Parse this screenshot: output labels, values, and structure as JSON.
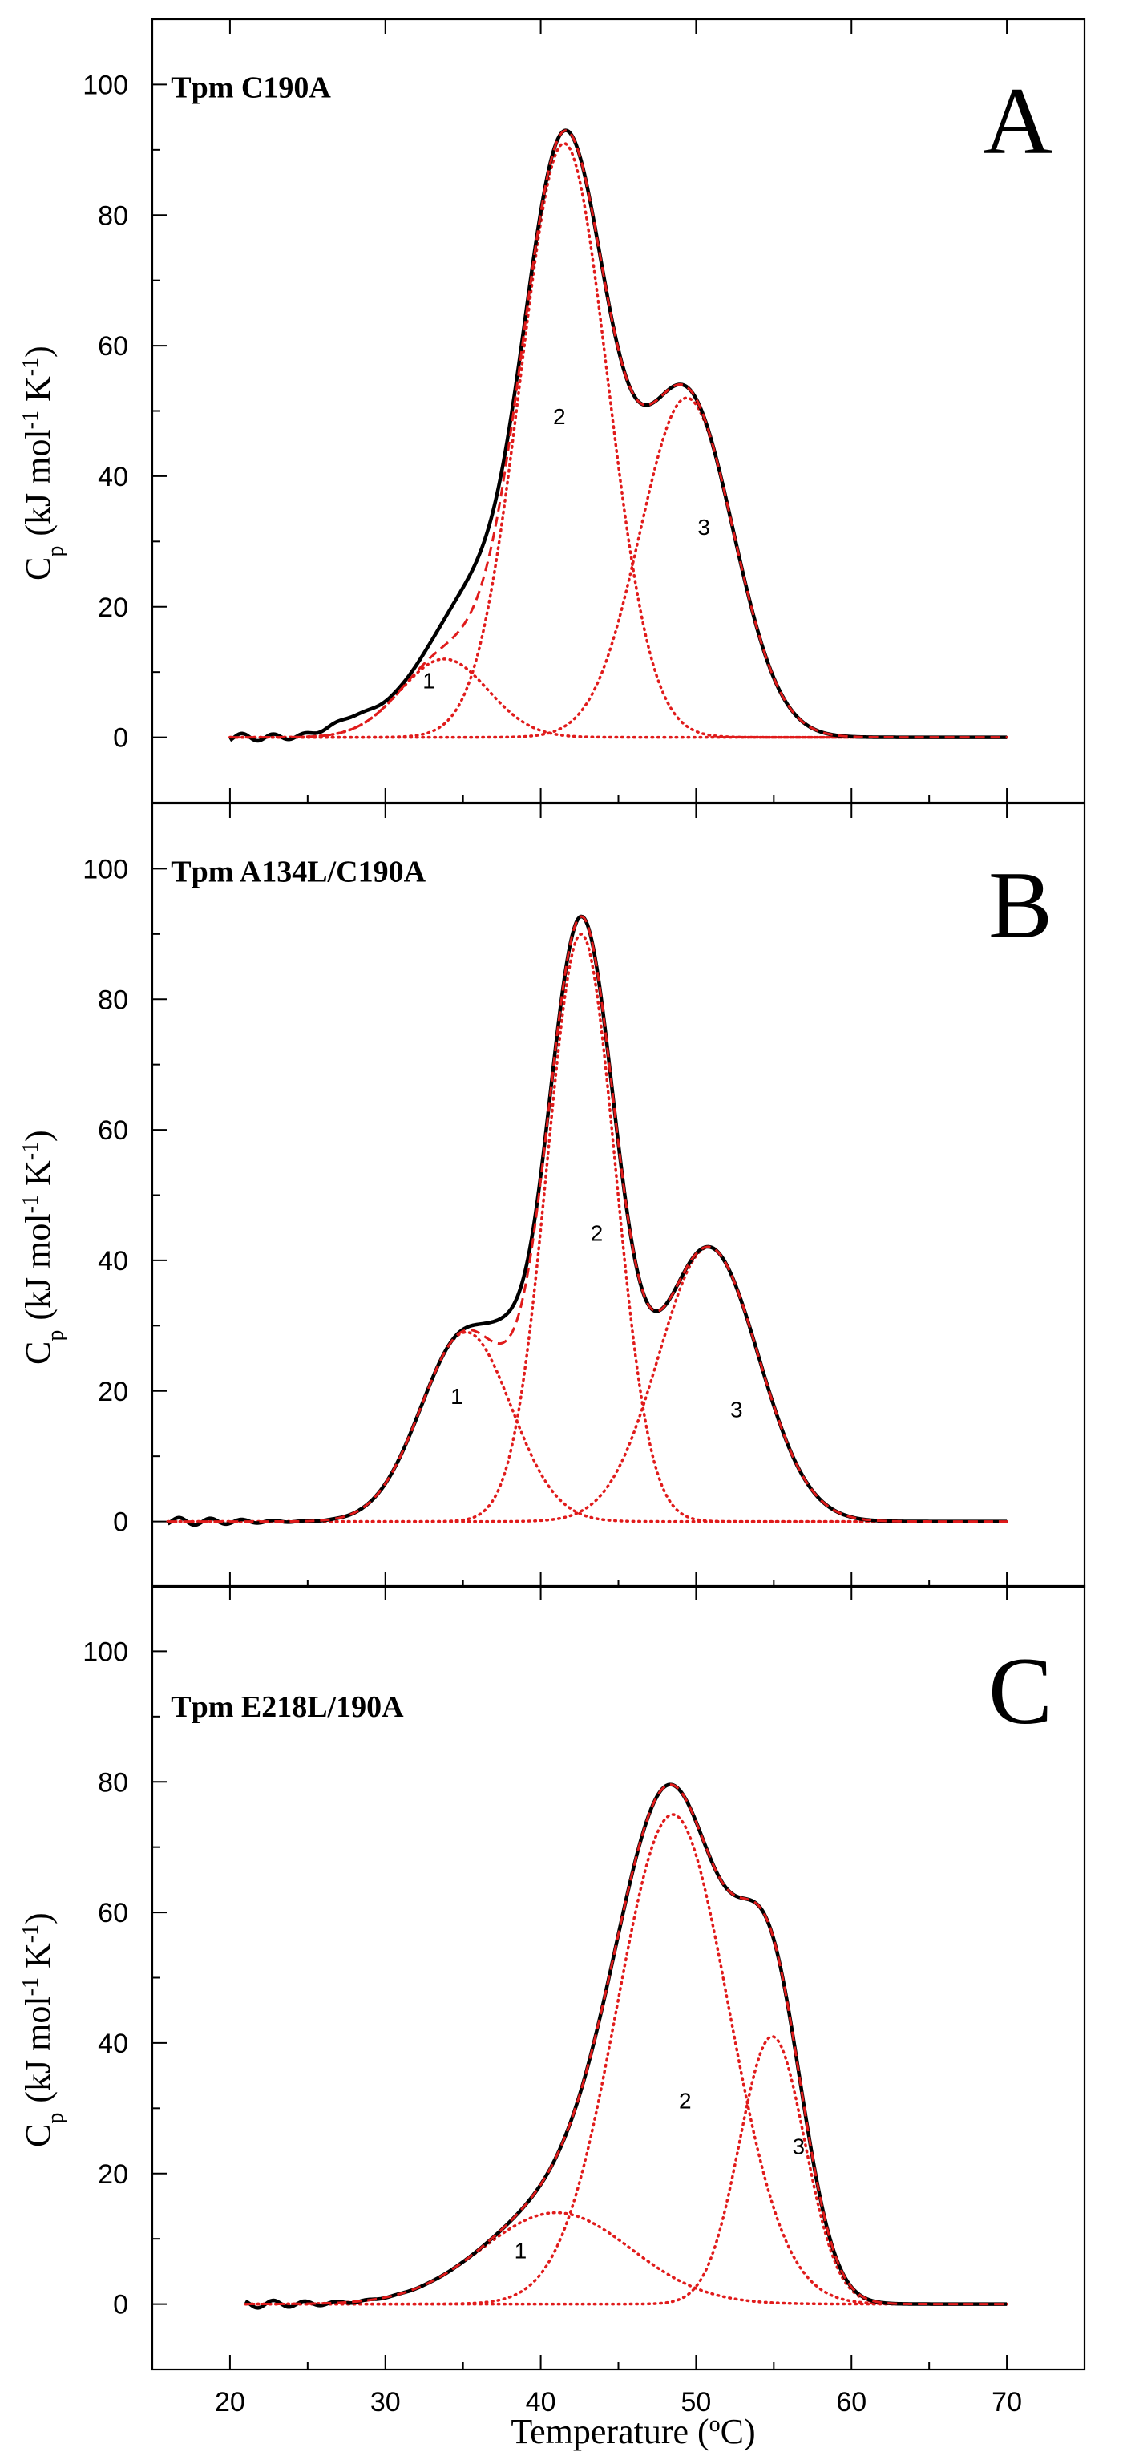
{
  "chart_data": [
    {
      "type": "line",
      "panel": "A",
      "title": "Tpm C190A",
      "xlabel": "Temperature (°C)",
      "ylabel": "Cp (kJ mol-1 K-1)",
      "xlim": [
        15,
        75
      ],
      "ylim": [
        -10,
        110
      ],
      "xticks": [
        20,
        30,
        40,
        50,
        60,
        70
      ],
      "yticks": [
        0,
        20,
        40,
        60,
        80,
        100
      ],
      "peaks": [
        {
          "label": "1",
          "center": 33.8,
          "height": 12,
          "width": 2.8,
          "label_pos": [
            32.8,
            7.5
          ]
        },
        {
          "label": "2",
          "center": 41.5,
          "height": 91,
          "width": 2.8,
          "label_pos": [
            41.2,
            48
          ]
        },
        {
          "label": "3",
          "center": 49.4,
          "height": 52,
          "width": 3.0,
          "label_pos": [
            50.5,
            31
          ]
        }
      ],
      "series": [
        {
          "name": "measured",
          "style": "solid-black",
          "x_range": [
            20,
            70
          ]
        },
        {
          "name": "total fit",
          "style": "dashed-red",
          "x_range": [
            20,
            70
          ]
        },
        {
          "name": "component 1",
          "style": "dotted-red",
          "x_range": [
            20,
            70
          ]
        },
        {
          "name": "component 2",
          "style": "dotted-red",
          "x_range": [
            20,
            70
          ]
        },
        {
          "name": "component 3",
          "style": "dotted-red",
          "x_range": [
            20,
            70
          ]
        }
      ],
      "bumps": [
        {
          "center": 35.4,
          "height": 6,
          "width": 1.8
        },
        {
          "center": 27.8,
          "height": 2,
          "width": 1.5
        }
      ]
    },
    {
      "type": "line",
      "panel": "B",
      "title": "Tpm A134L/C190A",
      "xlabel": "Temperature (°C)",
      "ylabel": "Cp (kJ mol-1 K-1)",
      "xlim": [
        15,
        75
      ],
      "ylim": [
        -10,
        110
      ],
      "xticks": [
        20,
        30,
        40,
        50,
        60,
        70
      ],
      "yticks": [
        0,
        20,
        40,
        60,
        80,
        100
      ],
      "peaks": [
        {
          "label": "1",
          "center": 35.2,
          "height": 29,
          "width": 2.9,
          "label_pos": [
            34.6,
            18
          ]
        },
        {
          "label": "2",
          "center": 42.6,
          "height": 90,
          "width": 2.2,
          "label_pos": [
            43.6,
            43
          ]
        },
        {
          "label": "3",
          "center": 50.8,
          "height": 42,
          "width": 3.2,
          "label_pos": [
            52.6,
            16
          ]
        }
      ],
      "series": [
        {
          "name": "measured",
          "style": "solid-black",
          "x_range": [
            16,
            70
          ]
        },
        {
          "name": "total fit",
          "style": "dashed-red",
          "x_range": [
            16,
            70
          ]
        },
        {
          "name": "component 1",
          "style": "dotted-red",
          "x_range": [
            16,
            70
          ]
        },
        {
          "name": "component 2",
          "style": "dotted-red",
          "x_range": [
            16,
            70
          ]
        },
        {
          "name": "component 3",
          "style": "dotted-red",
          "x_range": [
            16,
            70
          ]
        }
      ],
      "bumps": [
        {
          "center": 37.8,
          "height": 4,
          "width": 1.2
        }
      ]
    },
    {
      "type": "line",
      "panel": "C",
      "title": "Tpm  E218L/190A",
      "xlabel": "Temperature (°C)",
      "ylabel": "Cp (kJ mol-1 K-1)",
      "xlim": [
        15,
        75
      ],
      "ylim": [
        -10,
        110
      ],
      "xticks": [
        20,
        30,
        40,
        50,
        60,
        70
      ],
      "yticks": [
        0,
        20,
        40,
        60,
        80,
        100
      ],
      "peaks": [
        {
          "label": "1",
          "center": 41.0,
          "height": 14,
          "width": 4.8,
          "label_pos": [
            38.7,
            7
          ]
        },
        {
          "label": "2",
          "center": 48.5,
          "height": 75,
          "width": 3.6,
          "label_pos": [
            49.3,
            30
          ]
        },
        {
          "label": "3",
          "center": 54.9,
          "height": 41,
          "width": 2.1,
          "label_pos": [
            56.6,
            23
          ]
        }
      ],
      "series": [
        {
          "name": "measured",
          "style": "solid-black",
          "x_range": [
            21,
            70
          ]
        },
        {
          "name": "total fit",
          "style": "dashed-red",
          "x_range": [
            21,
            70
          ]
        },
        {
          "name": "component 1",
          "style": "dotted-red",
          "x_range": [
            21,
            70
          ]
        },
        {
          "name": "component 2",
          "style": "dotted-red",
          "x_range": [
            21,
            70
          ]
        },
        {
          "name": "component 3",
          "style": "dotted-red",
          "x_range": [
            21,
            70
          ]
        }
      ],
      "bumps": []
    }
  ],
  "panel_letters": [
    "A",
    "B",
    "C"
  ],
  "x_axis_title": "Temperature (",
  "x_axis_title_degree": "o",
  "x_axis_title_unit": "C)",
  "y_axis_title_base": "C",
  "y_axis_title_sub": "p",
  "y_axis_title_units": "(kJ mol",
  "y_axis_title_exp1": "-1",
  "y_axis_title_k": " K",
  "y_axis_title_exp2": "-1",
  "y_axis_title_close": ")",
  "colors": {
    "measured": "#000000",
    "fit": "#e01b1b"
  }
}
